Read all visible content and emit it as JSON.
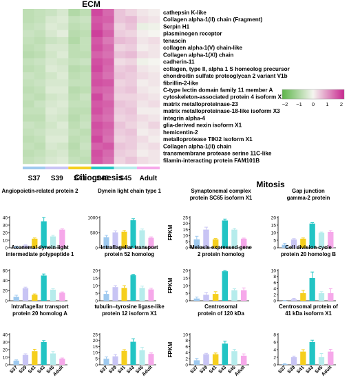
{
  "heatmap": {
    "title": "ECM",
    "type": "heatmap",
    "stages": [
      "S37",
      "S39",
      "S41",
      "S43",
      "S45",
      "Adult"
    ],
    "stage_colors": [
      "#9ec9ef",
      "#c8c4f4",
      "#f5cf1d",
      "#22c4c4",
      "#b6ecec",
      "#f6a8ea"
    ],
    "genes": [
      "cathepsin K-like",
      "Collagen alpha-1(II) chain (Fragment)",
      "Serpin H1",
      "plasminogen receptor",
      "tenascin",
      "collagen alpha-1(V) chain-like",
      "Collagen alpha-1(XI) chain",
      "cadherin-11",
      "collagen, type II, alpha 1 S homeolog precursor",
      "chondroitin sulfate proteoglycan 2 variant V1b",
      "fibrillin-2-like",
      "C-type lectin domain family 11 member A",
      "cytoskeleton-associated protein 4 isoform X2",
      "matrix metalloproteinase-23",
      "matrix metalloproteinase-18-like isoform X3",
      "integrin alpha-4",
      "glia-derived nexin isoform X1",
      "hemicentin-2",
      "metalloprotease TIKI2 isoform X1",
      "Collagen alpha-1(II) chain",
      "transmembrane protease serine 11C-like",
      "filamin-interacting protein FAM101B"
    ],
    "columns_per_stage": 2,
    "legend_ticks": [
      -2,
      -1,
      0,
      1,
      2
    ],
    "legend_tick_labels": [
      "−2",
      "−1",
      "0",
      "1",
      "2"
    ],
    "color_low": "#5db54a",
    "color_mid": "#f5f5f0",
    "color_high": "#c8278f",
    "cell_values": [
      [
        -0.9,
        -0.8,
        -0.7,
        -0.5,
        -1.1,
        -0.9,
        2.1,
        1.7,
        0.6,
        0.4,
        0.2,
        0.1
      ],
      [
        -0.9,
        -0.8,
        -0.5,
        -0.4,
        -0.8,
        -0.7,
        1.9,
        1.8,
        0.6,
        0.7,
        0.3,
        0.2
      ],
      [
        -0.8,
        -0.7,
        -0.4,
        -0.5,
        -0.9,
        -0.8,
        2.0,
        1.6,
        0.4,
        0.6,
        -0.2,
        -0.1
      ],
      [
        -0.7,
        -0.8,
        -0.5,
        -0.3,
        -1.0,
        -0.9,
        2.2,
        1.8,
        0.5,
        0.4,
        0.1,
        0.0
      ],
      [
        -0.8,
        -0.9,
        -0.7,
        -0.6,
        -1.1,
        -0.8,
        1.9,
        1.5,
        0.7,
        0.6,
        0.2,
        0.3
      ],
      [
        -0.9,
        -0.8,
        -0.5,
        -0.5,
        -0.9,
        -0.8,
        2.0,
        1.7,
        0.4,
        0.5,
        0.1,
        0.2
      ],
      [
        -1.0,
        -0.9,
        -0.6,
        -0.4,
        -0.9,
        -0.9,
        1.8,
        1.6,
        0.6,
        0.7,
        0.3,
        0.2
      ],
      [
        -0.8,
        -0.7,
        -0.5,
        -0.6,
        -0.8,
        -0.7,
        2.0,
        1.8,
        0.3,
        0.4,
        -0.1,
        0.0
      ],
      [
        -0.9,
        -0.8,
        -0.4,
        -0.5,
        -1.0,
        -0.9,
        2.1,
        1.7,
        0.5,
        0.6,
        0.2,
        0.1
      ],
      [
        -0.7,
        -0.8,
        -0.6,
        -0.4,
        -0.9,
        -0.8,
        1.9,
        1.6,
        0.6,
        0.5,
        0.3,
        0.2
      ],
      [
        -0.8,
        -0.7,
        -0.5,
        -0.5,
        -0.8,
        -0.8,
        2.0,
        1.9,
        0.4,
        0.5,
        0.1,
        0.2
      ],
      [
        -0.9,
        -0.8,
        -0.4,
        -0.4,
        -1.0,
        -0.9,
        1.8,
        1.7,
        0.5,
        0.6,
        0.2,
        0.1
      ],
      [
        -0.8,
        -0.9,
        -0.6,
        -0.5,
        -0.9,
        -0.7,
        2.1,
        1.6,
        0.4,
        0.4,
        0.3,
        0.2
      ],
      [
        -0.9,
        -0.7,
        -0.5,
        -0.4,
        -0.8,
        -0.8,
        1.9,
        1.8,
        0.6,
        0.5,
        0.2,
        0.3
      ],
      [
        -0.8,
        -0.8,
        -0.4,
        -0.5,
        -0.9,
        -0.9,
        2.0,
        1.7,
        0.5,
        0.6,
        0.1,
        0.1
      ],
      [
        -0.9,
        -0.9,
        -0.5,
        -0.6,
        -1.0,
        -0.8,
        1.8,
        1.6,
        0.4,
        0.5,
        0.3,
        0.2
      ],
      [
        -0.7,
        -0.8,
        -0.6,
        -0.4,
        -0.9,
        -0.7,
        2.0,
        1.8,
        0.6,
        0.4,
        0.2,
        0.4
      ],
      [
        -0.8,
        -0.7,
        -0.5,
        -0.5,
        -0.8,
        -0.9,
        1.9,
        1.7,
        0.5,
        0.6,
        0.1,
        0.2
      ],
      [
        -0.9,
        -0.8,
        -0.4,
        -0.4,
        -0.9,
        -0.8,
        2.1,
        1.6,
        0.4,
        0.5,
        0.3,
        0.1
      ],
      [
        -0.8,
        -0.9,
        -0.5,
        -0.6,
        -1.0,
        -0.7,
        1.8,
        1.9,
        0.6,
        0.5,
        0.2,
        0.3
      ],
      [
        -0.9,
        -0.8,
        -0.6,
        -0.5,
        -0.9,
        -0.8,
        2.0,
        1.7,
        0.5,
        0.4,
        0.1,
        0.2
      ],
      [
        -0.8,
        -0.7,
        -0.5,
        -0.4,
        -0.8,
        -0.9,
        1.9,
        1.6,
        0.4,
        0.6,
        0.3,
        0.2
      ]
    ]
  },
  "sections": {
    "left_title": "Ciliogenesis",
    "right_title": "Mitosis"
  },
  "bar_colors": [
    "#9ec9ef",
    "#c8c4f4",
    "#f5cf1d",
    "#22c4c4",
    "#b6ecec",
    "#f6a8ea"
  ],
  "chart_data": [
    {
      "type": "bar",
      "group": "Ciliogenesis",
      "title_lines": [
        "Angiopoietin-related protein 2"
      ],
      "ylabel": "FPKM",
      "ylim": [
        0,
        40
      ],
      "yticks": [
        0,
        10,
        20,
        30,
        40
      ],
      "categories": [
        "S37",
        "S39",
        "S41",
        "S43",
        "S45",
        "Adult"
      ],
      "values": [
        1.5,
        3,
        12,
        35,
        15,
        24
      ],
      "errors": [
        0.5,
        0.8,
        1.0,
        5.0,
        1.5,
        1.0
      ]
    },
    {
      "type": "bar",
      "group": "Ciliogenesis",
      "title_lines": [
        "Dynein light chain type 1"
      ],
      "ylabel": "",
      "ylim": [
        0,
        1000
      ],
      "yticks": [
        0,
        500,
        1000
      ],
      "categories": [
        "S37",
        "S39",
        "S41",
        "S43",
        "S45",
        "Adult"
      ],
      "values": [
        350,
        510,
        530,
        910,
        580,
        330
      ],
      "errors": [
        60,
        50,
        40,
        50,
        40,
        30
      ]
    },
    {
      "type": "bar",
      "group": "Mitosis",
      "title_lines": [
        "Synaptonemal complex",
        "protein  SC65 isoform X1"
      ],
      "ylabel": "FPKM",
      "ylim": [
        0,
        25
      ],
      "yticks": [
        0,
        5,
        10,
        15,
        20,
        25
      ],
      "categories": [
        "S37",
        "S39",
        "S41",
        "S43",
        "S45",
        "Adult"
      ],
      "values": [
        7,
        15,
        7,
        22.5,
        15,
        7.5
      ],
      "errors": [
        2.5,
        2.0,
        0.6,
        1.2,
        1.0,
        0.5
      ]
    },
    {
      "type": "bar",
      "group": "Mitosis",
      "title_lines": [
        "Gap junction",
        "gamma-2 protein"
      ],
      "ylabel": "",
      "ylim": [
        0,
        20
      ],
      "yticks": [
        0,
        5,
        10,
        15,
        20
      ],
      "categories": [
        "S37",
        "S39",
        "S41",
        "S43",
        "S45",
        "Adult"
      ],
      "values": [
        2,
        5.5,
        6,
        16,
        10,
        10.5
      ],
      "errors": [
        1.0,
        0.5,
        0.5,
        0.6,
        0.4,
        0.8
      ]
    },
    {
      "type": "bar",
      "group": "Ciliogenesis",
      "title_lines": [
        "Axonemal dynein light",
        "intermediate polypeptide 1"
      ],
      "ylabel": "FPKM",
      "ylim": [
        0,
        60
      ],
      "yticks": [
        0,
        20,
        40,
        60
      ],
      "categories": [
        "S37",
        "S39",
        "S41",
        "S43",
        "S45",
        "Adult"
      ],
      "values": [
        8,
        25,
        12,
        50,
        22,
        16
      ],
      "errors": [
        3.0,
        2.0,
        1.5,
        3.0,
        2.0,
        1.5
      ]
    },
    {
      "type": "bar",
      "group": "Ciliogenesis",
      "title_lines": [
        "Intraflagellar transport",
        "protein 52 homolog"
      ],
      "ylabel": "",
      "ylim": [
        0,
        20
      ],
      "yticks": [
        0,
        5,
        10,
        15,
        20
      ],
      "categories": [
        "S37",
        "S39",
        "S41",
        "S43",
        "S45",
        "Adult"
      ],
      "values": [
        4.5,
        9,
        8.5,
        17,
        8.5,
        7.5
      ],
      "errors": [
        1.8,
        1.0,
        1.5,
        0.4,
        1.2,
        0.8
      ]
    },
    {
      "type": "bar",
      "group": "Mitosis",
      "title_lines": [
        "Meiosis expressed gene",
        "2 protein homolog"
      ],
      "ylabel": "FPKM",
      "ylim": [
        0,
        20
      ],
      "yticks": [
        0,
        5,
        10,
        15,
        20
      ],
      "categories": [
        "S37",
        "S39",
        "S41",
        "S43",
        "S45",
        "Adult"
      ],
      "values": [
        1.5,
        4,
        4.5,
        19.5,
        7,
        7
      ],
      "errors": [
        1.0,
        1.5,
        1.5,
        0.5,
        1.0,
        1.5
      ]
    },
    {
      "type": "bar",
      "group": "Mitosis",
      "title_lines": [
        "Cell division cycle",
        "protein 20 homolog B"
      ],
      "ylabel": "",
      "ylim": [
        0,
        10
      ],
      "yticks": [
        0,
        2,
        4,
        6,
        8,
        10
      ],
      "categories": [
        "S37",
        "S39",
        "S41",
        "S43",
        "S45",
        "Adult"
      ],
      "values": [
        0,
        0.5,
        2.5,
        7.5,
        2.5,
        2.5
      ],
      "errors": [
        0.1,
        0.3,
        1.0,
        2.0,
        0.5,
        1.5
      ]
    },
    {
      "type": "bar",
      "group": "Ciliogenesis",
      "title_lines": [
        "Intraflagellar transport",
        "protein 20 homolog A"
      ],
      "ylabel": "FPKM",
      "ylim": [
        0,
        40
      ],
      "yticks": [
        0,
        10,
        20,
        30,
        40
      ],
      "categories": [
        "S37",
        "S39",
        "S41",
        "S43",
        "S45",
        "Adult"
      ],
      "values": [
        5.5,
        13,
        18,
        30,
        15,
        8
      ],
      "errors": [
        1.0,
        1.5,
        2.5,
        2.0,
        2.5,
        1.0
      ]
    },
    {
      "type": "bar",
      "group": "Ciliogenesis",
      "title_lines": [
        "tubulin--tyrosine ligase-like",
        "protein 12 isoform X1"
      ],
      "ylabel": "",
      "ylim": [
        0,
        25
      ],
      "yticks": [
        0,
        5,
        10,
        15,
        20,
        25
      ],
      "categories": [
        "S37",
        "S39",
        "S41",
        "S43",
        "S45",
        "Adult"
      ],
      "values": [
        5,
        7,
        11.5,
        19,
        12,
        9
      ],
      "errors": [
        1.5,
        1.5,
        1.0,
        2.5,
        2.5,
        0.8
      ]
    },
    {
      "type": "bar",
      "group": "Mitosis",
      "title_lines": [
        "Centrosomal",
        "protein of 120 kDa"
      ],
      "ylabel": "FPKM",
      "ylim": [
        0,
        10
      ],
      "yticks": [
        0,
        2,
        4,
        6,
        8,
        10
      ],
      "categories": [
        "S37",
        "S39",
        "S41",
        "S43",
        "S45",
        "Adult"
      ],
      "values": [
        1.5,
        3.5,
        3.5,
        7,
        4.5,
        3
      ],
      "errors": [
        0.6,
        0.3,
        0.4,
        0.8,
        0.6,
        0.6
      ]
    },
    {
      "type": "bar",
      "group": "Mitosis",
      "title_lines": [
        "Centrosomal protein of",
        "41 kDa isoform X1"
      ],
      "ylabel": "",
      "ylim": [
        0,
        8
      ],
      "yticks": [
        0,
        2,
        4,
        6,
        8
      ],
      "categories": [
        "S37",
        "S39",
        "S41",
        "S43",
        "S45",
        "Adult"
      ],
      "values": [
        0.2,
        2,
        3.5,
        6,
        2,
        3.5
      ],
      "errors": [
        0.1,
        0.3,
        0.5,
        0.5,
        1.0,
        0.6
      ]
    }
  ]
}
